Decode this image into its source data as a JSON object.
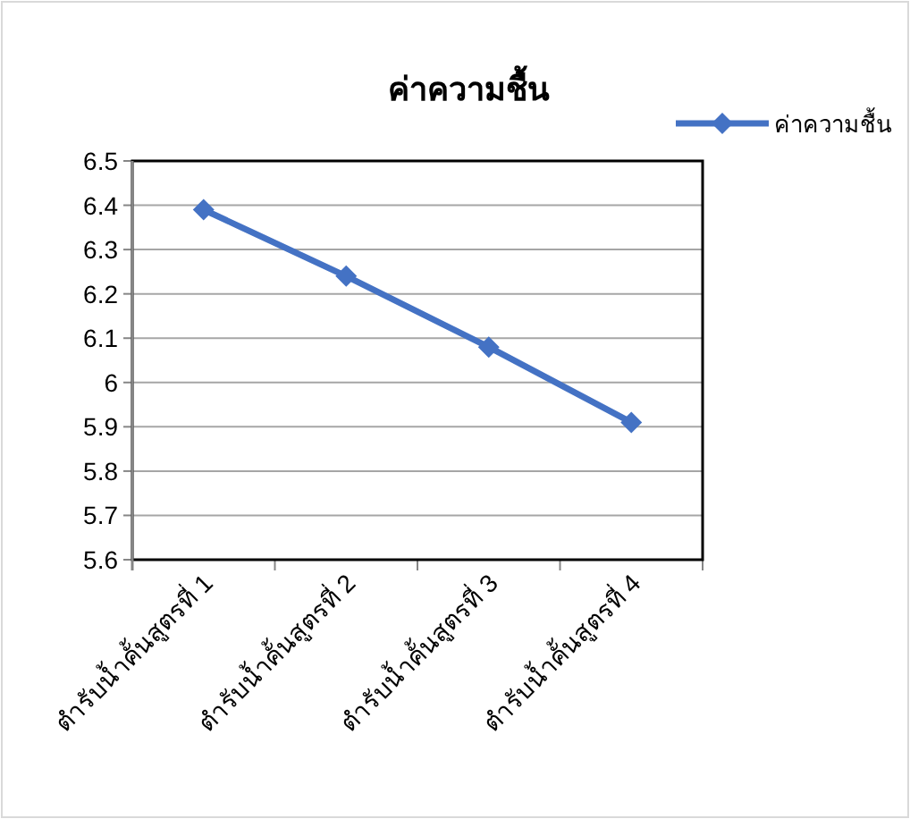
{
  "chart_data": {
    "type": "line",
    "title": "ค่าความชื้น",
    "categories": [
      "ตำรับน้ำคั้นสูตรที่ 1",
      "ตำรับน้ำคั้นสูตรที่ 2",
      "ตำรับน้ำคั้นสูตรที่ 3",
      "ตำรับน้ำคั้นสูตรที่ 4"
    ],
    "series": [
      {
        "name": "ค่าความชื้น",
        "color": "#4472c4",
        "values": [
          6.39,
          6.24,
          6.08,
          5.91
        ]
      }
    ],
    "ylim": [
      5.6,
      6.5
    ],
    "yticks": [
      5.6,
      5.7,
      5.8,
      5.9,
      6,
      6.1,
      6.2,
      6.3,
      6.4,
      6.5
    ],
    "grid": "y",
    "legend": "top right",
    "marker": "diamond",
    "line_style": "solid"
  }
}
